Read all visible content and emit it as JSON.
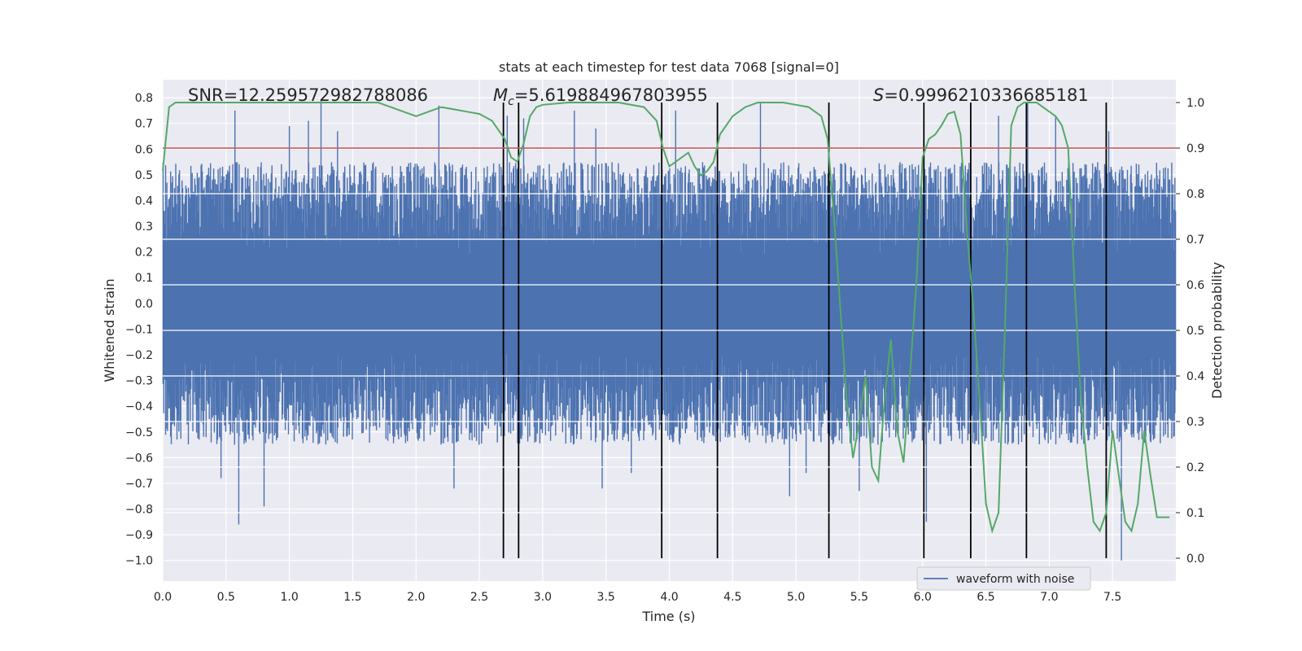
{
  "chart_data": {
    "type": "line",
    "title": "stats at each timestep for test data 7068 [signal=0]",
    "xlabel": "Time (s)",
    "ylabel_left": "Whitened strain",
    "ylabel_right": "Detection probability",
    "xlim": [
      0.0,
      8.0
    ],
    "ylim_left": [
      -1.08,
      0.87
    ],
    "ylim_right": [
      -0.05,
      1.05
    ],
    "x_ticks": [
      "0.0",
      "0.5",
      "1.0",
      "1.5",
      "2.0",
      "2.5",
      "3.0",
      "3.5",
      "4.0",
      "4.5",
      "5.0",
      "5.5",
      "6.0",
      "6.5",
      "7.0",
      "7.5"
    ],
    "y_ticks_left": [
      "0.8",
      "0.7",
      "0.6",
      "0.5",
      "0.4",
      "0.3",
      "0.2",
      "0.1",
      "0.0",
      "−0.1",
      "−0.2",
      "−0.3",
      "−0.4",
      "−0.5",
      "−0.6",
      "−0.7",
      "−0.8",
      "−0.9",
      "−1.0"
    ],
    "y_ticks_right": [
      "1.0",
      "0.9",
      "0.8",
      "0.7",
      "0.6",
      "0.5",
      "0.4",
      "0.3",
      "0.2",
      "0.1",
      "0.0"
    ],
    "annotations": {
      "snr": "SNR=12.259572982788086",
      "mc_symbol": "M",
      "mc_sub": "c",
      "mc_value": "=5.619884967803955",
      "s_symbol": "S",
      "s_value": "=0.9996210336685181"
    },
    "threshold": {
      "axis": "right",
      "value": 0.9,
      "color": "#c44e52"
    },
    "event_lines_x": [
      2.69,
      2.81,
      3.94,
      4.38,
      5.26,
      6.01,
      6.38,
      6.82,
      7.45
    ],
    "series": [
      {
        "name": "waveform with noise",
        "axis": "left",
        "color": "#4c72b0",
        "kind": "noise",
        "typical_max": 0.55,
        "typical_min": -0.55,
        "spikes": [
          {
            "x": 0.57,
            "y": 0.75
          },
          {
            "x": 0.46,
            "y": -0.68
          },
          {
            "x": 0.6,
            "y": -0.86
          },
          {
            "x": 0.8,
            "y": -0.79
          },
          {
            "x": 1.0,
            "y": 0.69
          },
          {
            "x": 1.25,
            "y": 0.79
          },
          {
            "x": 1.15,
            "y": 0.71
          },
          {
            "x": 1.38,
            "y": 0.67
          },
          {
            "x": 2.18,
            "y": 0.77
          },
          {
            "x": 2.3,
            "y": -0.72
          },
          {
            "x": 2.72,
            "y": 0.73
          },
          {
            "x": 2.85,
            "y": 0.72
          },
          {
            "x": 3.25,
            "y": 0.75
          },
          {
            "x": 3.42,
            "y": 0.68
          },
          {
            "x": 3.47,
            "y": -0.72
          },
          {
            "x": 3.7,
            "y": -0.66
          },
          {
            "x": 4.05,
            "y": 0.75
          },
          {
            "x": 4.72,
            "y": 0.78
          },
          {
            "x": 4.95,
            "y": -0.75
          },
          {
            "x": 5.08,
            "y": -0.66
          },
          {
            "x": 5.5,
            "y": -0.73
          },
          {
            "x": 6.03,
            "y": -0.85
          },
          {
            "x": 6.6,
            "y": 0.73
          },
          {
            "x": 6.83,
            "y": 0.78
          },
          {
            "x": 7.05,
            "y": 0.73
          },
          {
            "x": 7.47,
            "y": 0.67
          },
          {
            "x": 7.57,
            "y": -1.0
          }
        ]
      },
      {
        "name": "detection probability",
        "axis": "right",
        "color": "#55a868",
        "x": [
          0.0,
          0.05,
          0.1,
          0.15,
          0.2,
          0.3,
          0.5,
          0.7,
          0.9,
          1.1,
          1.3,
          1.5,
          1.7,
          1.8,
          1.9,
          2.0,
          2.1,
          2.2,
          2.3,
          2.4,
          2.5,
          2.6,
          2.7,
          2.75,
          2.8,
          2.85,
          2.9,
          2.95,
          3.0,
          3.2,
          3.4,
          3.6,
          3.8,
          3.9,
          3.95,
          4.0,
          4.05,
          4.1,
          4.15,
          4.2,
          4.25,
          4.3,
          4.35,
          4.4,
          4.5,
          4.6,
          4.7,
          4.8,
          4.9,
          5.0,
          5.1,
          5.2,
          5.25,
          5.3,
          5.35,
          5.4,
          5.45,
          5.5,
          5.55,
          5.6,
          5.65,
          5.7,
          5.75,
          5.8,
          5.85,
          5.9,
          5.95,
          6.0,
          6.05,
          6.1,
          6.15,
          6.2,
          6.25,
          6.3,
          6.35,
          6.4,
          6.45,
          6.5,
          6.55,
          6.6,
          6.65,
          6.7,
          6.75,
          6.8,
          6.85,
          6.9,
          6.95,
          7.0,
          7.05,
          7.1,
          7.15,
          7.2,
          7.25,
          7.3,
          7.35,
          7.4,
          7.45,
          7.5,
          7.55,
          7.6,
          7.65,
          7.7,
          7.75,
          7.8,
          7.85,
          7.9,
          7.95
        ],
        "values": [
          0.85,
          0.99,
          1.0,
          1.0,
          1.0,
          1.0,
          1.0,
          1.0,
          1.0,
          1.0,
          1.0,
          1.0,
          1.0,
          0.99,
          0.98,
          0.97,
          0.98,
          0.99,
          0.985,
          0.98,
          0.975,
          0.96,
          0.92,
          0.88,
          0.87,
          0.91,
          0.97,
          0.99,
          0.995,
          1.0,
          1.0,
          1.0,
          0.99,
          0.96,
          0.9,
          0.86,
          0.87,
          0.88,
          0.89,
          0.86,
          0.84,
          0.85,
          0.87,
          0.93,
          0.97,
          0.99,
          1.0,
          1.0,
          1.0,
          0.995,
          0.99,
          0.97,
          0.92,
          0.75,
          0.55,
          0.35,
          0.22,
          0.3,
          0.4,
          0.2,
          0.17,
          0.35,
          0.48,
          0.28,
          0.21,
          0.4,
          0.6,
          0.88,
          0.92,
          0.93,
          0.95,
          0.975,
          0.98,
          0.93,
          0.72,
          0.55,
          0.35,
          0.12,
          0.06,
          0.1,
          0.5,
          0.95,
          0.99,
          1.0,
          1.0,
          1.0,
          0.99,
          0.98,
          0.97,
          0.95,
          0.9,
          0.6,
          0.35,
          0.2,
          0.08,
          0.06,
          0.1,
          0.28,
          0.18,
          0.08,
          0.06,
          0.12,
          0.28,
          0.18,
          0.09,
          0.09,
          0.09
        ]
      }
    ],
    "legend": {
      "placement": "lower-right",
      "entries": [
        "waveform with noise"
      ]
    }
  }
}
